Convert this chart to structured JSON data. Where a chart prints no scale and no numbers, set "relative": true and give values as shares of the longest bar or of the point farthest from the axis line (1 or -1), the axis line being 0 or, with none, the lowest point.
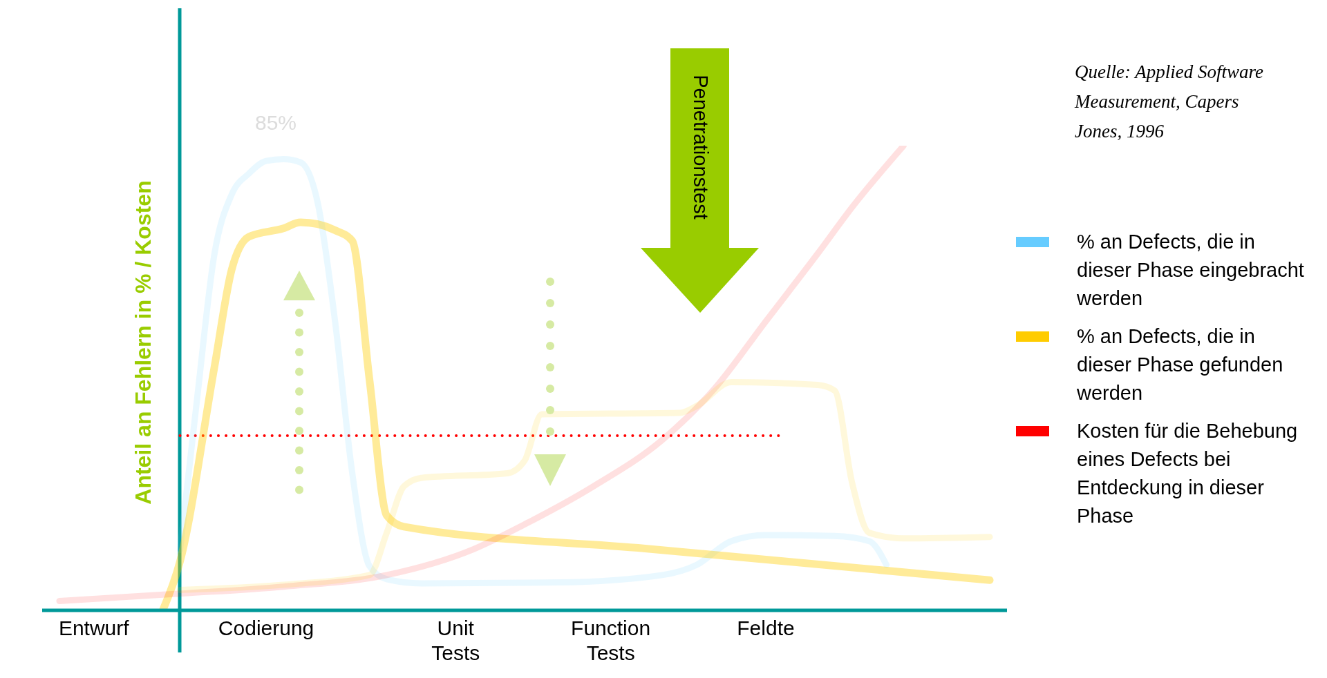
{
  "chart_data": {
    "type": "line",
    "relative": true,
    "ylabel": "Anteil an Fehlern in % / Kosten",
    "legend": "right",
    "grid": false,
    "marker": "none",
    "categories": [
      null,
      null,
      null,
      "Entwurf",
      null,
      null,
      null,
      null,
      null,
      null,
      null,
      null,
      null,
      "Codierung",
      null,
      null,
      null,
      null,
      null,
      null,
      null,
      null,
      null,
      null,
      "Unit Tests",
      null,
      null,
      null,
      null,
      null,
      null,
      null,
      null,
      "Function Tests",
      null,
      null,
      null,
      null,
      null,
      null,
      null,
      null,
      "Feldte",
      null,
      null,
      null,
      null,
      null,
      null,
      null,
      null,
      null,
      null,
      null,
      null,
      null,
      null
    ],
    "series": [
      {
        "name": "% an Defects, die in dieser Phase eingebracht werden",
        "color": "#66ccff",
        "values": [
          null,
          null,
          null,
          null,
          null,
          null,
          null,
          null,
          0.13,
          0.458,
          0.767,
          0.895,
          0.94,
          0.967,
          0.971,
          0.964,
          0.876,
          0.622,
          0.295,
          0.095,
          0.067,
          null,
          0.058,
          null,
          null,
          null,
          null,
          null,
          null,
          null,
          0.06,
          null,
          null,
          null,
          null,
          null,
          0.076,
          null,
          0.098,
          null,
          0.149,
          null,
          0.162,
          null,
          null,
          null,
          0.16,
          null,
          0.149,
          0.098,
          null,
          null,
          null,
          null,
          null,
          null,
          null
        ]
      },
      {
        "name": "% an Defects, die in dieser Phase gefunden werden",
        "color": "#ffcc00",
        "values": [
          null,
          null,
          null,
          null,
          null,
          null,
          null,
          0,
          0.105,
          null,
          0.524,
          0.733,
          0.804,
          null,
          0.822,
          0.835,
          0.831,
          0.818,
          0.795,
          0.496,
          0.204,
          0.18,
          null,
          null,
          null,
          null,
          null,
          null,
          null,
          null,
          null,
          null,
          null,
          null,
          null,
          0.133,
          null,
          null,
          null,
          null,
          null,
          null,
          null,
          null,
          null,
          null,
          null,
          null,
          null,
          null,
          null,
          null,
          null,
          null,
          null,
          0.065,
          null
        ]
      },
      {
        "name": "Kosten für die Behebung eines Defects bei Entdeckung in dieser Phase",
        "color": "#ff0000",
        "values": [
          null,
          0.02,
          null,
          null,
          null,
          null,
          null,
          null,
          0.036,
          null,
          null,
          null,
          null,
          null,
          0.051,
          null,
          null,
          null,
          null,
          null,
          0.076,
          null,
          null,
          null,
          null,
          0.131,
          null,
          null,
          0.185,
          null,
          null,
          null,
          0.267,
          null,
          null,
          null,
          0.367,
          null,
          null,
          0.476,
          null,
          null,
          0.622,
          null,
          null,
          0.767,
          null,
          0.867,
          null,
          null,
          1.0,
          null,
          null,
          null,
          null,
          null,
          null
        ]
      },
      {
        "color": "#ffcc00",
        "values": [
          null,
          null,
          null,
          null,
          null,
          null,
          null,
          null,
          0.044,
          null,
          null,
          null,
          null,
          null,
          0.055,
          null,
          null,
          null,
          null,
          0.076,
          0.167,
          0.267,
          0.285,
          null,
          null,
          null,
          null,
          0.295,
          0.322,
          0.422,
          null,
          null,
          null,
          null,
          null,
          null,
          null,
          0.425,
          0.44,
          null,
          0.491,
          null,
          null,
          null,
          null,
          0.485,
          0.473,
          0.276,
          0.167,
          null,
          0.155,
          null,
          null,
          null,
          null,
          0.158,
          null
        ]
      }
    ],
    "ref_lines": [
      {
        "axis": "y",
        "value": 0.376,
        "color": "#ff0000",
        "line_style": "dotted"
      }
    ],
    "annotations": [
      "85%",
      "Penetrationstest",
      "Quelle: Applied Software Measurement, Capers Jones, 1996"
    ]
  }
}
